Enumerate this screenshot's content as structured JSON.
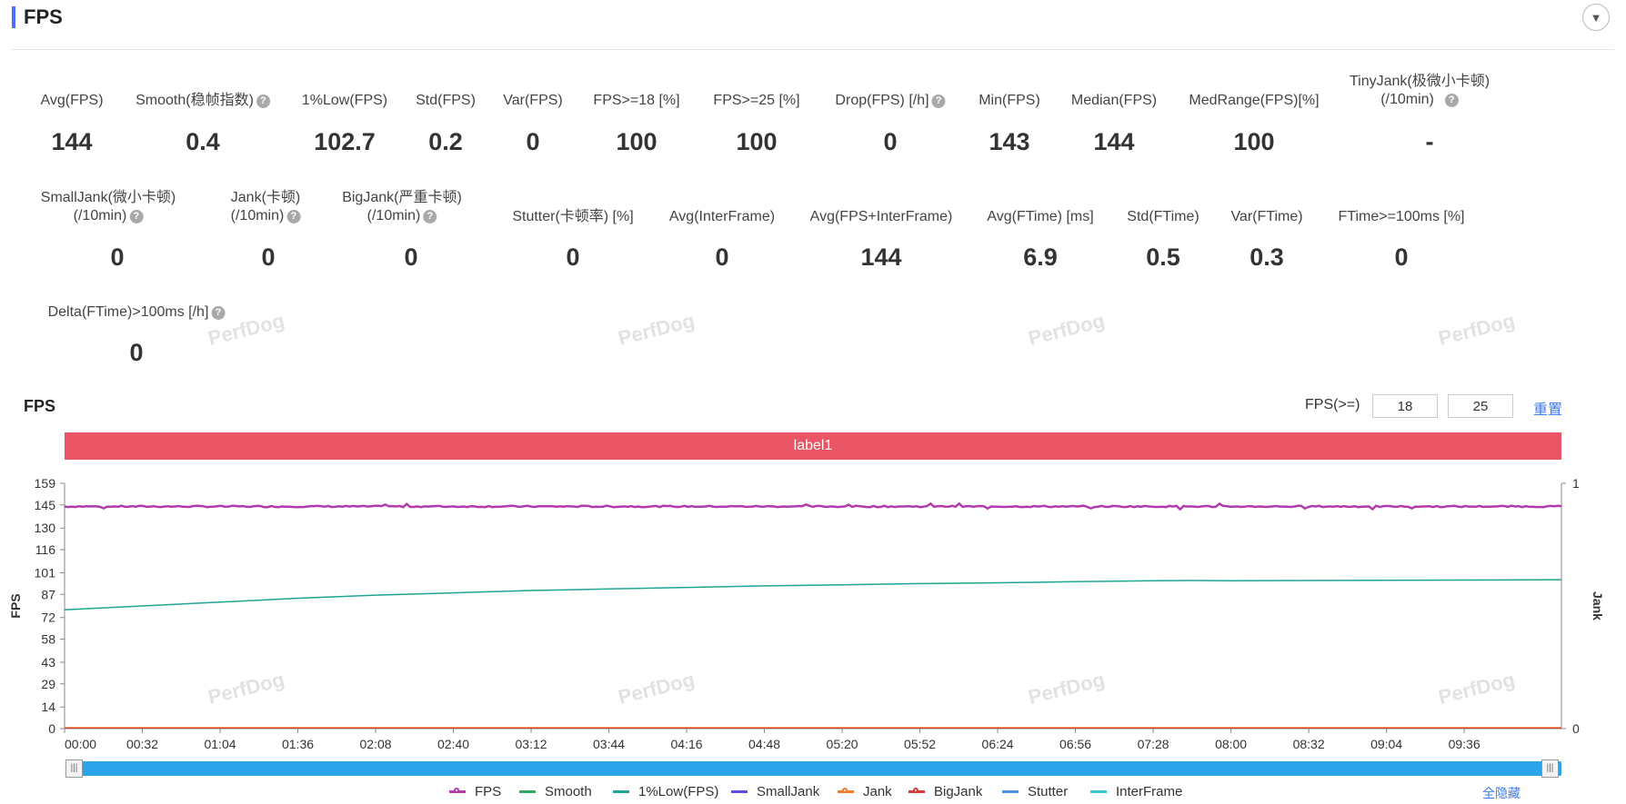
{
  "header": {
    "title": "FPS"
  },
  "metrics_row1": [
    {
      "label": "Avg(FPS)",
      "value": "144"
    },
    {
      "label": "Smooth(稳帧指数)",
      "value": "0.4",
      "help": true
    },
    {
      "label": "1%Low(FPS)",
      "value": "102.7"
    },
    {
      "label": "Std(FPS)",
      "value": "0.2"
    },
    {
      "label": "Var(FPS)",
      "value": "0"
    },
    {
      "label": "FPS>=18 [%]",
      "value": "100"
    },
    {
      "label": "FPS>=25 [%]",
      "value": "100"
    },
    {
      "label": "Drop(FPS) [/h]",
      "value": "0",
      "help": true
    },
    {
      "label": "Min(FPS)",
      "value": "143"
    },
    {
      "label": "Median(FPS)",
      "value": "144"
    },
    {
      "label": "MedRange(FPS)[%]",
      "value": "100"
    },
    {
      "label": "TinyJank(极微小卡顿)",
      "label2": "(/10min)",
      "value": "-",
      "help": true
    }
  ],
  "metrics_row2": [
    {
      "label": "SmallJank(微小卡顿)",
      "label2": "(/10min)",
      "value": "0",
      "help": true
    },
    {
      "label": "Jank(卡顿)",
      "label2": "(/10min)",
      "value": "0",
      "help": true
    },
    {
      "label": "BigJank(严重卡顿)",
      "label2": "(/10min)",
      "value": "0",
      "help": true
    },
    {
      "label": "Stutter(卡顿率) [%]",
      "value": "0"
    },
    {
      "label": "Avg(InterFrame)",
      "value": "0"
    },
    {
      "label": "Avg(FPS+InterFrame)",
      "value": "144"
    },
    {
      "label": "Avg(FTime) [ms]",
      "value": "6.9"
    },
    {
      "label": "Std(FTime)",
      "value": "0.5"
    },
    {
      "label": "Var(FTime)",
      "value": "0.3"
    },
    {
      "label": "FTime>=100ms [%]",
      "value": "0"
    }
  ],
  "metrics_row3": [
    {
      "label": "Delta(FTime)>100ms [/h]",
      "value": "0",
      "help": true
    }
  ],
  "watermark": "PerfDog",
  "chart_header": {
    "title": "FPS",
    "fps_ge_label": "FPS(>=)",
    "threshold1": "18",
    "threshold2": "25",
    "reset_label": "重置"
  },
  "label_band": "label1",
  "hide_all_label": "全隐藏",
  "chart_data": {
    "type": "line",
    "x": [
      "00:00",
      "00:32",
      "01:04",
      "01:36",
      "02:08",
      "02:40",
      "03:12",
      "03:44",
      "04:16",
      "04:48",
      "05:20",
      "05:52",
      "06:24",
      "06:56",
      "07:28",
      "08:00",
      "08:32",
      "09:04",
      "09:36"
    ],
    "x_range_seconds": [
      0,
      616
    ],
    "ylabel": "FPS",
    "ylim": [
      0,
      159
    ],
    "yticks": [
      0,
      14,
      29,
      43,
      58,
      72,
      87,
      101,
      116,
      130,
      145,
      159
    ],
    "y2label": "Jank",
    "y2lim": [
      0,
      1
    ],
    "y2ticks": [
      0,
      1
    ],
    "series": [
      {
        "name": "FPS",
        "color": "#b23aad",
        "marker": true,
        "value": 144
      },
      {
        "name": "Smooth",
        "color": "#2eaa5c",
        "marker": false
      },
      {
        "name": "1%Low(FPS)",
        "color": "#1fa593",
        "marker": false,
        "points": [
          [
            0,
            77
          ],
          [
            32,
            79.5
          ],
          [
            64,
            82
          ],
          [
            96,
            84.5
          ],
          [
            128,
            86.5
          ],
          [
            160,
            88
          ],
          [
            192,
            89.5
          ],
          [
            224,
            90.5
          ],
          [
            256,
            91.5
          ],
          [
            288,
            92.5
          ],
          [
            320,
            93.2
          ],
          [
            352,
            94
          ],
          [
            384,
            94.5
          ],
          [
            416,
            95.2
          ],
          [
            448,
            95.8
          ],
          [
            464,
            96
          ],
          [
            480,
            95.8
          ],
          [
            512,
            96
          ],
          [
            560,
            96.2
          ],
          [
            616,
            96.5
          ]
        ]
      },
      {
        "name": "SmallJank",
        "color": "#5a4de0",
        "marker": false
      },
      {
        "name": "Jank",
        "color": "#ef7d2c",
        "marker": true
      },
      {
        "name": "BigJank",
        "color": "#d93a3a",
        "marker": true
      },
      {
        "name": "Stutter",
        "color": "#4a90e2",
        "marker": false
      },
      {
        "name": "InterFrame",
        "color": "#35c9c9",
        "marker": false
      }
    ]
  }
}
